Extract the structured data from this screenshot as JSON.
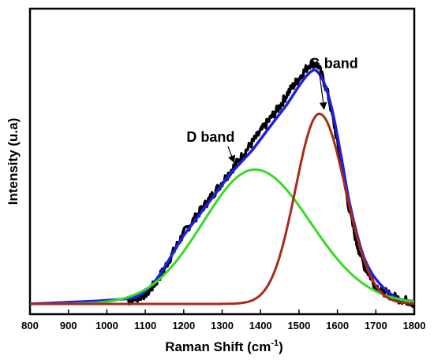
{
  "chart_data": {
    "type": "line",
    "title": "",
    "xlabel": "Raman Shift (cm",
    "xlabel_sup": "-1",
    "xlabel_tail": ")",
    "ylabel": "Intensity (u.a)",
    "xlim": [
      800,
      1800
    ],
    "ylim": [
      0,
      1
    ],
    "y_ticks_labeled": false,
    "grid": false,
    "legend": "none",
    "x_ticks": [
      800,
      900,
      1000,
      1100,
      1200,
      1300,
      1400,
      1500,
      1600,
      1700,
      1800
    ],
    "x_tick_labels": [
      "800",
      "900",
      "1000",
      "1100",
      "1200",
      "1300",
      "1400",
      "1500",
      "1600",
      "1700",
      "1800"
    ],
    "series": [
      {
        "key": "raw",
        "color": "#000000",
        "start_x": 1055,
        "x": [
          1055,
          1070,
          1090,
          1110,
          1130,
          1150,
          1175,
          1200,
          1230,
          1260,
          1290,
          1310,
          1330,
          1350,
          1370,
          1390,
          1410,
          1430,
          1450,
          1470,
          1490,
          1505,
          1520,
          1530,
          1540,
          1550,
          1560,
          1575,
          1590,
          1610,
          1630,
          1650,
          1670,
          1700,
          1730,
          1760,
          1790,
          1800
        ],
        "y": [
          0.01,
          0.02,
          0.03,
          0.05,
          0.09,
          0.14,
          0.21,
          0.28,
          0.34,
          0.4,
          0.46,
          0.5,
          0.54,
          0.58,
          0.62,
          0.66,
          0.7,
          0.74,
          0.78,
          0.83,
          0.87,
          0.9,
          0.93,
          0.95,
          0.95,
          0.94,
          0.9,
          0.83,
          0.72,
          0.55,
          0.38,
          0.24,
          0.15,
          0.07,
          0.04,
          0.02,
          0.01,
          0.0
        ]
      },
      {
        "key": "fit",
        "color": "#2020e0",
        "x": [
          800,
          950,
          1050,
          1080,
          1100,
          1120,
          1140,
          1160,
          1180,
          1200,
          1230,
          1260,
          1290,
          1320,
          1350,
          1380,
          1410,
          1440,
          1470,
          1500,
          1520,
          1535,
          1545,
          1560,
          1575,
          1590,
          1610,
          1630,
          1650,
          1670,
          1690,
          1710,
          1730,
          1760,
          1800
        ],
        "y": [
          0.0,
          0.01,
          0.02,
          0.03,
          0.05,
          0.08,
          0.12,
          0.17,
          0.22,
          0.27,
          0.33,
          0.39,
          0.45,
          0.51,
          0.56,
          0.61,
          0.67,
          0.73,
          0.79,
          0.86,
          0.9,
          0.92,
          0.92,
          0.89,
          0.83,
          0.74,
          0.58,
          0.41,
          0.28,
          0.18,
          0.12,
          0.08,
          0.05,
          0.02,
          0.01
        ]
      },
      {
        "key": "d_band",
        "color": "#33dd22",
        "peak": {
          "center": 1385,
          "height": 0.53,
          "sigma_left": 135,
          "sigma_right": 145,
          "baseline": 0.0
        }
      },
      {
        "key": "g_band",
        "color": "#aa2a1a",
        "peak": {
          "center": 1553,
          "height": 0.75,
          "sigma_left": 62,
          "sigma_right": 68,
          "baseline": 0.0
        }
      }
    ],
    "annotations": [
      {
        "text": "D band",
        "anchor_x": 1330,
        "anchor_y": 0.55,
        "label_x": 1270,
        "label_y": 0.64
      },
      {
        "text": "G band",
        "anchor_x": 1565,
        "anchor_y": 0.76,
        "label_x": 1590,
        "label_y": 0.93
      }
    ]
  }
}
